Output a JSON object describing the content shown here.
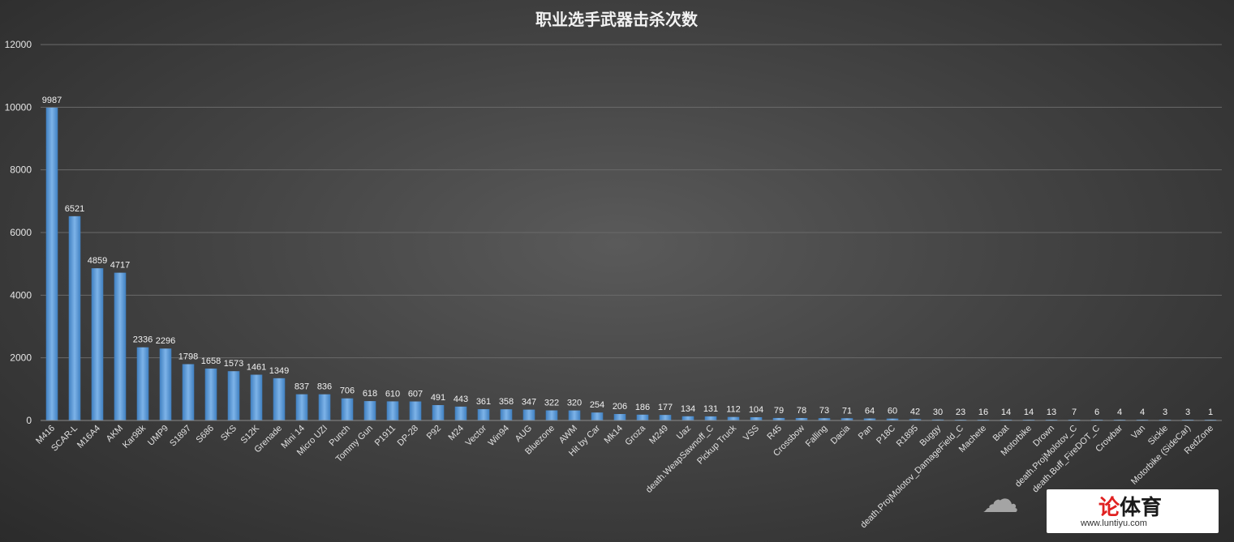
{
  "chart_data": {
    "type": "bar",
    "title": "职业选手武器击杀次数",
    "xlabel": "",
    "ylabel": "",
    "ylim": [
      0,
      12000
    ],
    "yticks": [
      0,
      2000,
      4000,
      6000,
      8000,
      10000,
      12000
    ],
    "grid": true,
    "categories": [
      "M416",
      "SCAR-L",
      "M16A4",
      "AKM",
      "Kar98k",
      "UMP9",
      "S1897",
      "S686",
      "SKS",
      "S12K",
      "Grenade",
      "Mini 14",
      "Micro UZI",
      "Punch",
      "Tommy Gun",
      "P1911",
      "DP-28",
      "P92",
      "M24",
      "Vector",
      "Win94",
      "AUG",
      "Bluezone",
      "AWM",
      "Hit by Car",
      "Mk14",
      "Groza",
      "M249",
      "Uaz",
      "death.WeapSawnoff_C",
      "Pickup Truck",
      "VSS",
      "R45",
      "Crossbow",
      "Falling",
      "Dacia",
      "Pan",
      "P18C",
      "R1895",
      "Buggy",
      "death.ProjMolotov_DamageField_C",
      "Machete",
      "Boat",
      "Motorbike",
      "Drown",
      "death.ProjMolotov_C",
      "death.Buff_FireDOT_C",
      "Crowbar",
      "Van",
      "Sickle",
      "Motorbike (SideCar)",
      "RedZone"
    ],
    "values": [
      9987,
      6521,
      4859,
      4717,
      2336,
      2296,
      1798,
      1658,
      1573,
      1461,
      1349,
      837,
      836,
      706,
      618,
      610,
      607,
      491,
      443,
      361,
      358,
      347,
      322,
      320,
      254,
      206,
      186,
      177,
      134,
      131,
      112,
      104,
      79,
      78,
      73,
      71,
      64,
      60,
      42,
      30,
      23,
      16,
      14,
      14,
      13,
      7,
      6,
      4,
      4,
      3,
      3,
      1
    ],
    "bar_color": "#5b9bd5"
  },
  "watermark": {
    "logo_accent": "论",
    "logo_text": "体育",
    "url": "www.luntiyu.com"
  }
}
